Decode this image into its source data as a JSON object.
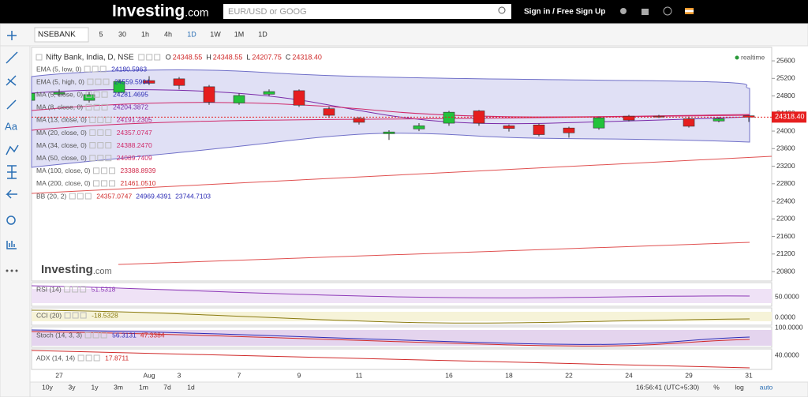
{
  "header": {
    "logo": "Investing",
    "logo_suffix": ".com",
    "search_placeholder": "EUR/USD or GOOG",
    "sign_in": "Sign in / Free Sign Up"
  },
  "toolbar": {
    "symbol": "NSEBANK",
    "intervals": [
      "5",
      "30",
      "1h",
      "4h",
      "1D",
      "1W",
      "1M"
    ],
    "active_interval_index": 4,
    "interval_menu": "1D"
  },
  "left_tools": {
    "text_tool": "Aa"
  },
  "chart": {
    "title": "Nifty Bank, India, D, NSE",
    "status": "realtime",
    "watermark": "Investing",
    "watermark_suffix": ".com",
    "ohlc": [
      {
        "label": "O",
        "value": "24348.55"
      },
      {
        "label": "H",
        "value": "24348.55"
      },
      {
        "label": "L",
        "value": "24207.75"
      },
      {
        "label": "C",
        "value": "24318.40"
      }
    ],
    "studies": [
      {
        "name": "EMA (5, low, 0)",
        "values": [
          "24180.5963"
        ],
        "colors": [
          "#2b2bb5"
        ]
      },
      {
        "name": "EMA (5, high, 0)",
        "values": [
          "24559.5904"
        ],
        "colors": [
          "#2b2bb5"
        ]
      },
      {
        "name": "MA (5, close, 0)",
        "values": [
          "24281.4695"
        ],
        "colors": [
          "#2b2bb5"
        ]
      },
      {
        "name": "MA (8, close, 0)",
        "values": [
          "24204.3872"
        ],
        "colors": [
          "#7a2aa8"
        ]
      },
      {
        "name": "MA (13, close, 0)",
        "values": [
          "24191.2305"
        ],
        "colors": [
          "#b02a8a"
        ]
      },
      {
        "name": "MA (20, close, 0)",
        "values": [
          "24357.0747"
        ],
        "colors": [
          "#d02a6a"
        ]
      },
      {
        "name": "MA (34, close, 0)",
        "values": [
          "24388.2470"
        ],
        "colors": [
          "#d02a6a"
        ]
      },
      {
        "name": "MA (50, close, 0)",
        "values": [
          "24089.7409"
        ],
        "colors": [
          "#d02a6a"
        ]
      },
      {
        "name": "MA (100, close, 0)",
        "values": [
          "23388.8939"
        ],
        "colors": [
          "#d02a4a"
        ]
      },
      {
        "name": "MA (200, close, 0)",
        "values": [
          "21461.0510"
        ],
        "colors": [
          "#d02a2a"
        ]
      },
      {
        "name": "BB (20, 2)",
        "values": [
          "24357.0747",
          "24969.4391",
          "23744.7103"
        ],
        "colors": [
          "#d02a2a",
          "#2b2bb5",
          "#2b2bb5"
        ]
      }
    ],
    "type": "candlestick",
    "categories": [
      null,
      "27",
      null,
      null,
      "Aug",
      "3",
      null,
      "7",
      null,
      "9",
      null,
      "11",
      null,
      null,
      "16",
      null,
      "18",
      null,
      "22",
      null,
      "24",
      null,
      "29",
      null,
      "31"
    ],
    "open": [
      24700,
      24840,
      24700,
      24880,
      25150,
      25190,
      25010,
      24640,
      24840,
      24920,
      24510,
      24290,
      23940,
      24050,
      24180,
      24460,
      24120,
      24140,
      24070,
      24070,
      24340,
      24340,
      24280,
      24230,
      24348.55
    ],
    "high": [
      24900,
      24950,
      24900,
      25180,
      25250,
      25230,
      25050,
      24860,
      24950,
      24950,
      24560,
      24320,
      24020,
      24180,
      24460,
      24480,
      24150,
      24170,
      24100,
      24330,
      24370,
      24370,
      24330,
      24320,
      24348.55
    ],
    "low": [
      24650,
      24800,
      24650,
      24850,
      25050,
      24950,
      24600,
      24600,
      24800,
      24550,
      24300,
      24150,
      23800,
      24000,
      24120,
      24120,
      23990,
      23880,
      23850,
      24030,
      24220,
      24300,
      24080,
      24200,
      24207.75
    ],
    "close": [
      24860,
      24880,
      24830,
      25130,
      25090,
      25040,
      24660,
      24810,
      24900,
      24590,
      24360,
      24200,
      23980,
      24120,
      24430,
      24180,
      24060,
      23920,
      23960,
      24300,
      24250,
      24320,
      24110,
      24280,
      24318.4
    ],
    "up_color": "#22c33a",
    "down_color": "#e61e1e",
    "ylim": [
      20585,
      25907
    ],
    "yticks": [
      25600,
      25200,
      24800,
      24400,
      24000,
      23600,
      23200,
      22800,
      22400,
      22000,
      21600,
      21200,
      20800
    ],
    "last_price_label": "24318.40",
    "panes": [
      {
        "name": "RSI (14)",
        "values": [
          "51.5318"
        ],
        "colors": [
          "#8e3ab8"
        ],
        "axis_label": "50.0000"
      },
      {
        "name": "CCI (20)",
        "values": [
          "-18.5328"
        ],
        "colors": [
          "#8a7a10"
        ],
        "axis_label": "0.0000"
      },
      {
        "name": "Stoch (14, 3, 3)",
        "values": [
          "56.3131",
          "47.3384"
        ],
        "colors": [
          "#2b2bb5",
          "#d02a2a"
        ],
        "axis_label": "100.0000"
      },
      {
        "name": "ADX (14, 14)",
        "values": [
          "17.8711"
        ],
        "colors": [
          "#d02a2a"
        ],
        "axis_label": "40.0000"
      }
    ]
  },
  "footer": {
    "ranges": [
      "10y",
      "3y",
      "1y",
      "3m",
      "1m",
      "7d",
      "1d"
    ],
    "time": "16:56:41 (UTC+5:30)",
    "options": [
      "%",
      "log",
      "auto"
    ]
  }
}
